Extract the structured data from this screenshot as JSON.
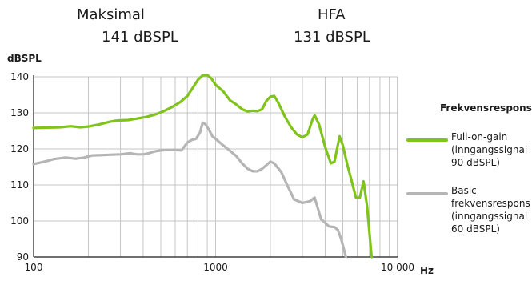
{
  "header": {
    "left_label": "Maksimal",
    "left_value": "141 dBSPL",
    "right_label": "HFA",
    "right_value": "131 dBSPL"
  },
  "colors": {
    "full_on_gain": "#80c31c",
    "basic": "#b5b5b5",
    "grid": "#c6c6c6",
    "axis": "#1a1a1a"
  },
  "chart_data": {
    "type": "line",
    "xscale": "log",
    "xlim": [
      100,
      10000
    ],
    "ylim": [
      90,
      140
    ],
    "xlabel": "Hz",
    "ylabel": "dBSPL",
    "x_ticks": [
      {
        "value": 100,
        "label": "100"
      },
      {
        "value": 1000,
        "label": "1000"
      },
      {
        "value": 10000,
        "label": "10 000"
      }
    ],
    "y_ticks": [
      90,
      100,
      110,
      120,
      130,
      140
    ],
    "grid": true,
    "legend_title": "Frekvensrespons",
    "legend_position": "right",
    "series": [
      {
        "name": "Full-on-gain (inngangssignal 90 dBSPL)",
        "legend_lines": [
          "Full-on-gain",
          "(inngangssignal",
          "90 dBSPL)"
        ],
        "color": "#80c31c",
        "points": [
          [
            100,
            125.8
          ],
          [
            120,
            125.9
          ],
          [
            140,
            126.0
          ],
          [
            160,
            126.3
          ],
          [
            180,
            126.0
          ],
          [
            200,
            126.2
          ],
          [
            230,
            126.8
          ],
          [
            260,
            127.5
          ],
          [
            280,
            127.8
          ],
          [
            300,
            127.9
          ],
          [
            330,
            128.0
          ],
          [
            370,
            128.4
          ],
          [
            420,
            128.9
          ],
          [
            470,
            129.6
          ],
          [
            520,
            130.5
          ],
          [
            580,
            131.7
          ],
          [
            640,
            133.0
          ],
          [
            700,
            134.7
          ],
          [
            750,
            137.0
          ],
          [
            800,
            139.2
          ],
          [
            850,
            140.4
          ],
          [
            900,
            140.5
          ],
          [
            950,
            139.5
          ],
          [
            1000,
            137.8
          ],
          [
            1100,
            136.0
          ],
          [
            1200,
            133.5
          ],
          [
            1300,
            132.3
          ],
          [
            1400,
            131.0
          ],
          [
            1500,
            130.4
          ],
          [
            1600,
            130.6
          ],
          [
            1700,
            130.5
          ],
          [
            1800,
            131.0
          ],
          [
            1900,
            133.3
          ],
          [
            2000,
            134.5
          ],
          [
            2100,
            134.7
          ],
          [
            2200,
            133.0
          ],
          [
            2400,
            129.0
          ],
          [
            2600,
            126.0
          ],
          [
            2800,
            124.0
          ],
          [
            3000,
            123.2
          ],
          [
            3200,
            124.0
          ],
          [
            3400,
            128.0
          ],
          [
            3500,
            129.3
          ],
          [
            3700,
            126.8
          ],
          [
            4000,
            120.5
          ],
          [
            4300,
            116.0
          ],
          [
            4500,
            116.5
          ],
          [
            4800,
            123.5
          ],
          [
            5000,
            121.0
          ],
          [
            5300,
            115.5
          ],
          [
            5600,
            111.0
          ],
          [
            5900,
            106.5
          ],
          [
            6200,
            106.5
          ],
          [
            6500,
            111.0
          ],
          [
            6800,
            104.0
          ],
          [
            7200,
            90.0
          ]
        ]
      },
      {
        "name": "Basic-frekvensrespons (inngangssignal 60 dBSPL)",
        "legend_lines": [
          "Basic-",
          "frekvensrespons",
          "(inngangssignal",
          "60 dBSPL)"
        ],
        "color": "#b5b5b5",
        "points": [
          [
            100,
            115.8
          ],
          [
            115,
            116.5
          ],
          [
            130,
            117.2
          ],
          [
            150,
            117.6
          ],
          [
            170,
            117.3
          ],
          [
            190,
            117.6
          ],
          [
            210,
            118.2
          ],
          [
            240,
            118.3
          ],
          [
            270,
            118.4
          ],
          [
            300,
            118.5
          ],
          [
            340,
            118.8
          ],
          [
            370,
            118.5
          ],
          [
            400,
            118.5
          ],
          [
            430,
            118.8
          ],
          [
            460,
            119.3
          ],
          [
            500,
            119.6
          ],
          [
            550,
            119.7
          ],
          [
            600,
            119.7
          ],
          [
            650,
            119.6
          ],
          [
            700,
            121.8
          ],
          [
            740,
            122.5
          ],
          [
            780,
            122.8
          ],
          [
            820,
            124.5
          ],
          [
            850,
            127.3
          ],
          [
            880,
            126.8
          ],
          [
            920,
            125.3
          ],
          [
            960,
            123.5
          ],
          [
            1000,
            122.8
          ],
          [
            1100,
            121.0
          ],
          [
            1200,
            119.5
          ],
          [
            1300,
            118.0
          ],
          [
            1400,
            116.0
          ],
          [
            1500,
            114.5
          ],
          [
            1600,
            113.8
          ],
          [
            1700,
            113.8
          ],
          [
            1800,
            114.5
          ],
          [
            1900,
            115.5
          ],
          [
            2000,
            116.5
          ],
          [
            2100,
            116.0
          ],
          [
            2300,
            113.5
          ],
          [
            2500,
            109.5
          ],
          [
            2700,
            106.0
          ],
          [
            3000,
            105.0
          ],
          [
            3300,
            105.5
          ],
          [
            3500,
            106.5
          ],
          [
            3800,
            100.5
          ],
          [
            4000,
            99.5
          ],
          [
            4200,
            98.5
          ],
          [
            4500,
            98.3
          ],
          [
            4700,
            97.5
          ],
          [
            4900,
            95.0
          ],
          [
            5200,
            90.0
          ]
        ]
      }
    ]
  }
}
